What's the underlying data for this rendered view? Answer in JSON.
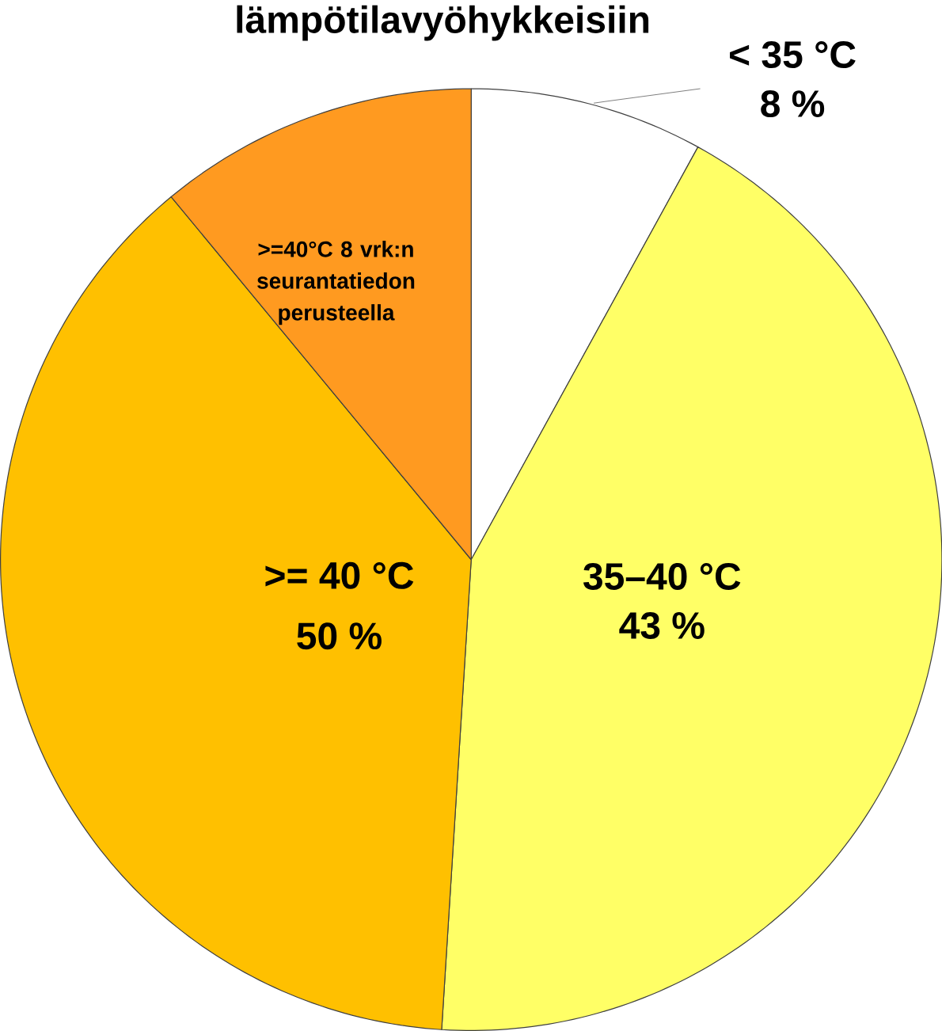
{
  "chart_data": {
    "type": "pie",
    "title": "lämpötilavyöhykkeisiin",
    "categories": [
      "< 35 °C",
      "35–40 °C",
      ">= 40 °C",
      ">=40°C 8 vrk:n seurantatiedon perusteella"
    ],
    "values": [
      8,
      43,
      38,
      11
    ],
    "value_labels": [
      "8 %",
      "43 %",
      null,
      null
    ],
    "annotations": [
      "50 %"
    ],
    "colors": [
      "#ffffff",
      "#ffff66",
      "#ffc000",
      "#ff9a20"
    ]
  }
}
